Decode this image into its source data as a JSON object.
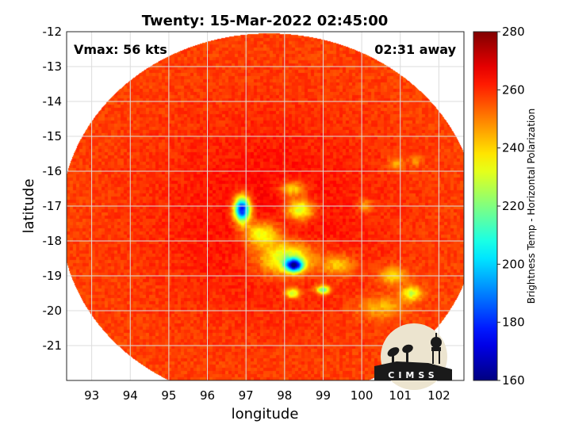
{
  "chart_data": {
    "type": "heatmap",
    "title": "Twenty: 15-Mar-2022 02:45:00",
    "xlabel": "longitude",
    "ylabel": "latitude",
    "xlim": [
      92.35,
      102.65
    ],
    "ylim": [
      -22.0,
      -12.0
    ],
    "x_ticks": [
      93,
      94,
      95,
      96,
      97,
      98,
      99,
      100,
      101,
      102
    ],
    "y_ticks": [
      -12,
      -13,
      -14,
      -15,
      -16,
      -17,
      -18,
      -19,
      -20,
      -21
    ],
    "grid": true,
    "annotations": {
      "top_left": "Vmax: 56 kts",
      "top_right": "02:31 away"
    },
    "colorbar": {
      "label": "Brightness Temp - Horizontal Polarization",
      "range": [
        160,
        280
      ],
      "ticks": [
        160,
        180,
        200,
        220,
        240,
        260,
        280
      ],
      "colormap": "jet"
    },
    "swath": {
      "center": [
        97.6,
        -17.35
      ],
      "radius_lon": 5.4,
      "radius_lat": 5.3
    },
    "features": [
      {
        "lon": 97.6,
        "lat": -17.2,
        "sx": 3.2,
        "sy": 3.0,
        "value": 264,
        "kind": "core"
      },
      {
        "lon": 96.9,
        "lat": -17.1,
        "sx": 0.2,
        "sy": 0.35,
        "value": 170
      },
      {
        "lon": 97.4,
        "lat": -17.8,
        "sx": 0.45,
        "sy": 0.35,
        "value": 228
      },
      {
        "lon": 98.05,
        "lat": -18.5,
        "sx": 0.7,
        "sy": 0.45,
        "value": 222
      },
      {
        "lon": 98.25,
        "lat": -18.7,
        "sx": 0.22,
        "sy": 0.18,
        "value": 178
      },
      {
        "lon": 98.4,
        "lat": -17.1,
        "sx": 0.35,
        "sy": 0.3,
        "value": 224
      },
      {
        "lon": 98.2,
        "lat": -16.5,
        "sx": 0.3,
        "sy": 0.2,
        "value": 234
      },
      {
        "lon": 99.0,
        "lat": -19.4,
        "sx": 0.18,
        "sy": 0.12,
        "value": 212
      },
      {
        "lon": 98.2,
        "lat": -19.5,
        "sx": 0.18,
        "sy": 0.14,
        "value": 224
      },
      {
        "lon": 99.4,
        "lat": -18.7,
        "sx": 0.4,
        "sy": 0.3,
        "value": 238
      },
      {
        "lon": 101.3,
        "lat": -19.5,
        "sx": 0.25,
        "sy": 0.2,
        "value": 228
      },
      {
        "lon": 100.8,
        "lat": -19.0,
        "sx": 0.35,
        "sy": 0.25,
        "value": 238
      },
      {
        "lon": 100.5,
        "lat": -19.9,
        "sx": 0.6,
        "sy": 0.3,
        "value": 242
      },
      {
        "lon": 100.1,
        "lat": -17.0,
        "sx": 0.2,
        "sy": 0.2,
        "value": 244
      },
      {
        "lon": 100.9,
        "lat": -15.8,
        "sx": 0.2,
        "sy": 0.2,
        "value": 244
      },
      {
        "lon": 101.4,
        "lat": -15.7,
        "sx": 0.15,
        "sy": 0.15,
        "value": 246
      }
    ],
    "logo_text": "CIMSS"
  }
}
